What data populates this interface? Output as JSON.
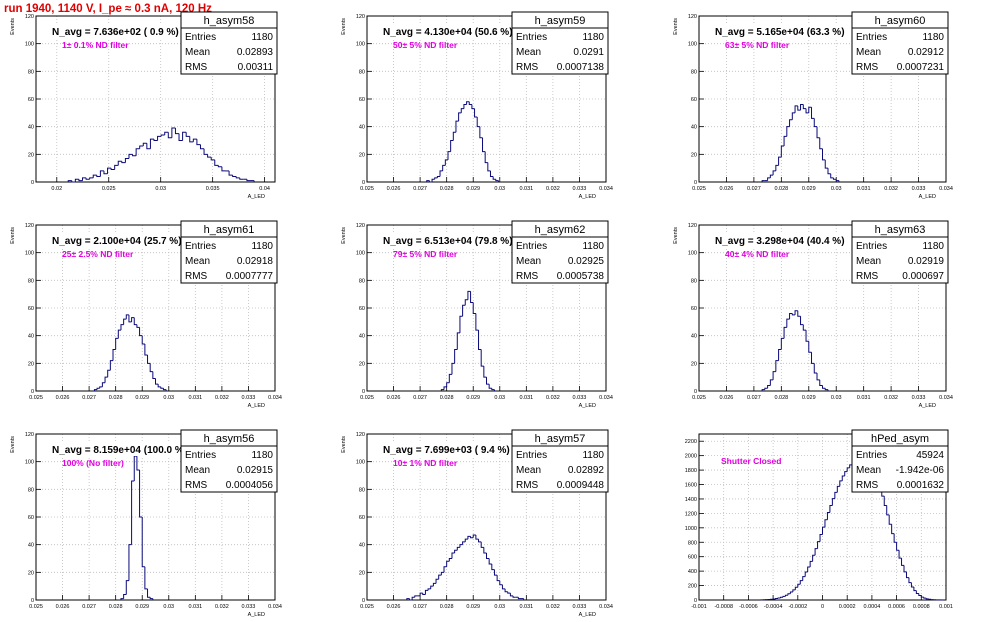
{
  "page_title": "run 1940,  1140 V, I_pe ≈ 0.3 nA, 120 Hz",
  "colors": {
    "histogram": "#0a0a7a",
    "annotation": "#e000e0",
    "title": "#e00000"
  },
  "chart_data": [
    {
      "type": "histogram",
      "name": "h_asym58",
      "header": "N_avg = 7.636e+02 ( 0.9 %)",
      "annotation": "1± 0.1% ND filter",
      "ylabel": "Events",
      "xlabel": "A_LED",
      "stats": {
        "Entries": "1180",
        "Mean": "0.02893",
        "RMS": "0.00311"
      },
      "xlim": [
        0.018,
        0.041
      ],
      "ylim": [
        0,
        120
      ],
      "xticks": [
        0.02,
        0.025,
        0.03,
        0.035,
        0.04
      ],
      "xtick_labels": [
        "0.02",
        "0.025",
        "0.03",
        "0.035",
        "0.04"
      ],
      "yticks": [
        0,
        20,
        40,
        60,
        80,
        100,
        120
      ],
      "bins": {
        "start": 0.0211,
        "width": 0.000344,
        "counts": [
          1,
          0,
          2,
          1,
          3,
          2,
          3,
          5,
          4,
          8,
          6,
          10,
          9,
          12,
          15,
          14,
          17,
          20,
          19,
          24,
          26,
          28,
          24,
          31,
          30,
          33,
          34,
          36,
          32,
          39,
          35,
          30,
          36,
          33,
          29,
          31,
          27,
          24,
          20,
          18,
          16,
          12,
          11,
          8,
          8,
          5,
          4,
          3,
          2,
          2,
          1,
          1
        ]
      }
    },
    {
      "type": "histogram",
      "name": "h_asym59",
      "header": "N_avg = 4.130e+04 (50.6 %)",
      "annotation": "50± 5% ND filter",
      "ylabel": "Events",
      "xlabel": "A_LED",
      "stats": {
        "Entries": "1180",
        "Mean": "0.0291",
        "RMS": "0.0007138"
      },
      "xlim": [
        0.025,
        0.034
      ],
      "ylim": [
        0,
        120
      ],
      "xticks": [
        0.025,
        0.026,
        0.027,
        0.028,
        0.029,
        0.03,
        0.031,
        0.032,
        0.033,
        0.034
      ],
      "xtick_labels": [
        "0.025",
        "0.026",
        "0.027",
        "0.028",
        "0.029",
        "0.03",
        "0.031",
        "0.032",
        "0.033",
        "0.034"
      ],
      "yticks": [
        0,
        20,
        40,
        60,
        80,
        100,
        120
      ],
      "bins": {
        "start": 0.02725,
        "width": 0.0001,
        "counts": [
          1,
          0,
          2,
          3,
          4,
          8,
          12,
          16,
          22,
          30,
          36,
          44,
          50,
          53,
          56,
          58,
          56,
          53,
          47,
          40,
          32,
          22,
          14,
          8,
          4,
          2,
          1
        ]
      }
    },
    {
      "type": "histogram",
      "name": "h_asym60",
      "header": "N_avg = 5.165e+04 (63.3 %)",
      "annotation": "63± 5% ND filter",
      "ylabel": "Events",
      "xlabel": "A_LED",
      "stats": {
        "Entries": "1180",
        "Mean": "0.02912",
        "RMS": "0.0007231"
      },
      "xlim": [
        0.025,
        0.034
      ],
      "ylim": [
        0,
        120
      ],
      "xticks": [
        0.025,
        0.026,
        0.027,
        0.028,
        0.029,
        0.03,
        0.031,
        0.032,
        0.033,
        0.034
      ],
      "xtick_labels": [
        "0.025",
        "0.026",
        "0.027",
        "0.028",
        "0.029",
        "0.03",
        "0.031",
        "0.032",
        "0.033",
        "0.034"
      ],
      "yticks": [
        0,
        20,
        40,
        60,
        80,
        100,
        120
      ],
      "bins": {
        "start": 0.0273,
        "width": 0.0001,
        "counts": [
          1,
          1,
          3,
          5,
          8,
          12,
          18,
          26,
          33,
          40,
          45,
          50,
          55,
          52,
          56,
          53,
          50,
          54,
          46,
          40,
          32,
          24,
          16,
          10,
          6,
          3,
          2,
          1
        ]
      }
    },
    {
      "type": "histogram",
      "name": "h_asym61",
      "header": "N_avg = 2.100e+04 (25.7 %)",
      "annotation": "25± 2.5% ND filter",
      "ylabel": "Events",
      "xlabel": "A_LED",
      "stats": {
        "Entries": "1180",
        "Mean": "0.02918",
        "RMS": "0.0007777"
      },
      "xlim": [
        0.025,
        0.034
      ],
      "ylim": [
        0,
        120
      ],
      "xticks": [
        0.025,
        0.026,
        0.027,
        0.028,
        0.029,
        0.03,
        0.031,
        0.032,
        0.033,
        0.034
      ],
      "xtick_labels": [
        "0.025",
        "0.026",
        "0.027",
        "0.028",
        "0.029",
        "0.03",
        "0.031",
        "0.032",
        "0.033",
        "0.034"
      ],
      "yticks": [
        0,
        20,
        40,
        60,
        80,
        100,
        120
      ],
      "bins": {
        "start": 0.0272,
        "width": 0.0001,
        "counts": [
          1,
          2,
          3,
          6,
          10,
          15,
          22,
          30,
          38,
          44,
          48,
          52,
          55,
          50,
          53,
          48,
          46,
          40,
          34,
          26,
          20,
          14,
          9,
          5,
          3,
          2,
          1
        ]
      }
    },
    {
      "type": "histogram",
      "name": "h_asym62",
      "header": "N_avg = 6.513e+04 (79.8 %)",
      "annotation": "79± 5% ND filter",
      "ylabel": "Events",
      "xlabel": "A_LED",
      "stats": {
        "Entries": "1180",
        "Mean": "0.02925",
        "RMS": "0.0005738"
      },
      "xlim": [
        0.025,
        0.034
      ],
      "ylim": [
        0,
        120
      ],
      "xticks": [
        0.025,
        0.026,
        0.027,
        0.028,
        0.029,
        0.03,
        0.031,
        0.032,
        0.033,
        0.034
      ],
      "xtick_labels": [
        "0.025",
        "0.026",
        "0.027",
        "0.028",
        "0.029",
        "0.03",
        "0.031",
        "0.032",
        "0.033",
        "0.034"
      ],
      "yticks": [
        0,
        20,
        40,
        60,
        80,
        100,
        120
      ],
      "bins": {
        "start": 0.0278,
        "width": 0.0001,
        "counts": [
          1,
          3,
          6,
          12,
          20,
          30,
          42,
          54,
          62,
          66,
          72,
          64,
          56,
          44,
          30,
          18,
          10,
          5,
          2,
          1
        ]
      }
    },
    {
      "type": "histogram",
      "name": "h_asym63",
      "header": "N_avg = 3.298e+04 (40.4 %)",
      "annotation": "40± 4% ND filter",
      "ylabel": "Events",
      "xlabel": "A_LED",
      "stats": {
        "Entries": "1180",
        "Mean": "0.02919",
        "RMS": "0.000697"
      },
      "xlim": [
        0.025,
        0.034
      ],
      "ylim": [
        0,
        120
      ],
      "xticks": [
        0.025,
        0.026,
        0.027,
        0.028,
        0.029,
        0.03,
        0.031,
        0.032,
        0.033,
        0.034
      ],
      "xtick_labels": [
        "0.025",
        "0.026",
        "0.027",
        "0.028",
        "0.029",
        "0.03",
        "0.031",
        "0.032",
        "0.033",
        "0.034"
      ],
      "yticks": [
        0,
        20,
        40,
        60,
        80,
        100,
        120
      ],
      "bins": {
        "start": 0.0273,
        "width": 0.0001,
        "counts": [
          1,
          2,
          4,
          8,
          14,
          22,
          30,
          38,
          46,
          52,
          56,
          55,
          58,
          54,
          48,
          44,
          36,
          28,
          20,
          13,
          8,
          4,
          2,
          1
        ]
      }
    },
    {
      "type": "histogram",
      "name": "h_asym56",
      "header": "N_avg = 8.159e+04 (100.0 %)",
      "annotation": "100% (No filter)",
      "ylabel": "Events",
      "xlabel": "A_LED",
      "stats": {
        "Entries": "1180",
        "Mean": "0.02915",
        "RMS": "0.0004056"
      },
      "xlim": [
        0.025,
        0.034
      ],
      "ylim": [
        0,
        120
      ],
      "xticks": [
        0.025,
        0.026,
        0.027,
        0.028,
        0.029,
        0.03,
        0.031,
        0.032,
        0.033,
        0.034
      ],
      "xtick_labels": [
        "0.025",
        "0.026",
        "0.027",
        "0.028",
        "0.029",
        "0.03",
        "0.031",
        "0.032",
        "0.033",
        "0.034"
      ],
      "yticks": [
        0,
        20,
        40,
        60,
        80,
        100,
        120
      ],
      "bins": {
        "start": 0.0282,
        "width": 0.0001,
        "counts": [
          1,
          4,
          14,
          40,
          86,
          104,
          94,
          60,
          24,
          8,
          2,
          1
        ]
      }
    },
    {
      "type": "histogram",
      "name": "h_asym57",
      "header": "N_avg = 7.699e+03 ( 9.4 %)",
      "annotation": "10± 1% ND filter",
      "ylabel": "Events",
      "xlabel": "A_LED",
      "stats": {
        "Entries": "1180",
        "Mean": "0.02892",
        "RMS": "0.0009448"
      },
      "xlim": [
        0.025,
        0.034
      ],
      "ylim": [
        0,
        120
      ],
      "xticks": [
        0.025,
        0.026,
        0.027,
        0.028,
        0.029,
        0.03,
        0.031,
        0.032,
        0.033,
        0.034
      ],
      "xtick_labels": [
        "0.025",
        "0.026",
        "0.027",
        "0.028",
        "0.029",
        "0.03",
        "0.031",
        "0.032",
        "0.033",
        "0.034"
      ],
      "yticks": [
        0,
        20,
        40,
        60,
        80,
        100,
        120
      ],
      "bins": {
        "start": 0.0265,
        "width": 0.0001,
        "counts": [
          1,
          0,
          2,
          3,
          3,
          5,
          4,
          7,
          8,
          10,
          12,
          15,
          18,
          20,
          24,
          28,
          30,
          34,
          36,
          38,
          40,
          42,
          44,
          46,
          45,
          47,
          44,
          42,
          38,
          34,
          30,
          26,
          22,
          18,
          14,
          11,
          8,
          6,
          5,
          3,
          2,
          2,
          1,
          1
        ]
      }
    },
    {
      "type": "histogram",
      "name": "hPed_asym",
      "header": "",
      "annotation": "Shutter Closed",
      "ylabel": "",
      "xlabel": "",
      "stats": {
        "Entries": "45924",
        "Mean": "-1.942e-06",
        "RMS": "0.0001632"
      },
      "xlim": [
        -0.001,
        0.001
      ],
      "ylim": [
        0,
        2300
      ],
      "xticks": [
        -0.001,
        -0.0008,
        -0.0006,
        -0.0004,
        -0.0002,
        0,
        0.0002,
        0.0004,
        0.0006,
        0.0008,
        0.001
      ],
      "xtick_labels": [
        "-0.001",
        "-0.0008",
        "-0.0006",
        "-0.0004",
        "-0.0002",
        "0",
        "0.0002",
        "0.0004",
        "0.0006",
        "0.0008",
        "0.001"
      ],
      "yticks": [
        0,
        200,
        400,
        600,
        800,
        1000,
        1200,
        1400,
        1600,
        1800,
        2000,
        2200
      ],
      "bins": {
        "start": -0.0005,
        "width": 2e-05,
        "counts": [
          2,
          3,
          5,
          7,
          10,
          14,
          20,
          28,
          38,
          50,
          66,
          86,
          110,
          140,
          176,
          218,
          268,
          324,
          388,
          458,
          536,
          620,
          712,
          808,
          908,
          1010,
          1112,
          1212,
          1310,
          1404,
          1492,
          1574,
          1650,
          1718,
          1778,
          1830,
          1872,
          1904,
          1926,
          1938,
          2120,
          2200,
          2160,
          2100,
          2020,
          1920,
          1800,
          1680,
          1560,
          1440,
          1310,
          1180,
          1050,
          920,
          800,
          690,
          580,
          480,
          390,
          310,
          240,
          180,
          130,
          90,
          62,
          40,
          26,
          16,
          10,
          6,
          4,
          2,
          1,
          1
        ]
      }
    }
  ]
}
